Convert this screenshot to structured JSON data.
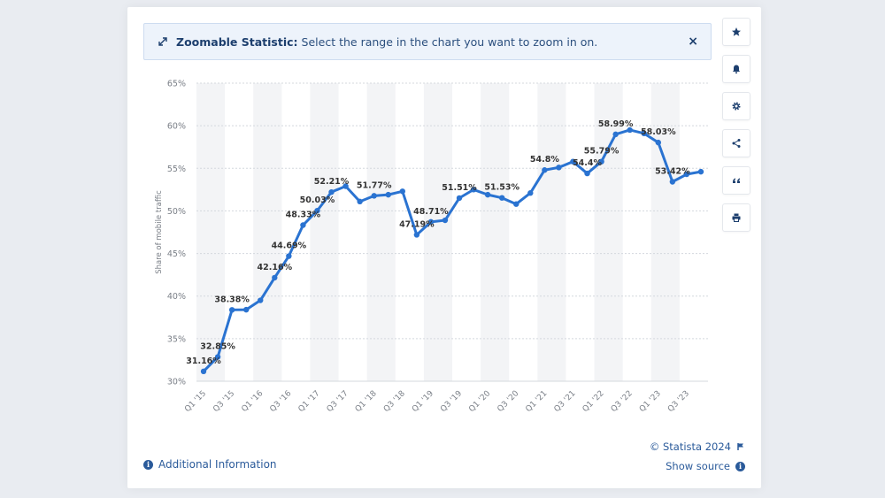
{
  "banner": {
    "title": "Zoomable Statistic:",
    "text": "Select the range in the chart you want to zoom in on.",
    "close": "×"
  },
  "sidebar": [
    {
      "name": "star-icon",
      "glyph": "★"
    },
    {
      "name": "bell-icon",
      "glyph": "🔔"
    },
    {
      "name": "gear-icon",
      "glyph": "⚙"
    },
    {
      "name": "share-icon",
      "glyph": "<"
    },
    {
      "name": "quote-icon",
      "glyph": "❝"
    },
    {
      "name": "print-icon",
      "glyph": "⎙"
    }
  ],
  "footer": {
    "additional_info": "Additional Information",
    "copyright": "© Statista 2024",
    "show_source": "Show source"
  },
  "colors": {
    "line": "#2a73d1",
    "text_dark": "#333333",
    "link": "#2a5a9a"
  },
  "chart_data": {
    "type": "line",
    "ylabel": "Share of mobile traffic",
    "ylim": [
      30,
      65
    ],
    "yticks": [
      "30%",
      "35%",
      "40%",
      "45%",
      "50%",
      "55%",
      "60%",
      "65%"
    ],
    "xticks": [
      "Q1 '15",
      "Q3 '15",
      "Q1 '16",
      "Q3 '16",
      "Q1 '17",
      "Q3 '17",
      "Q1 '18",
      "Q3 '18",
      "Q1 '19",
      "Q3 '19",
      "Q1 '20",
      "Q3 '20",
      "Q1 '21",
      "Q3 '21",
      "Q1 '22",
      "Q3 '22",
      "Q1 '23",
      "Q3 '23"
    ],
    "categories": [
      "Q1 '15",
      "Q2 '15",
      "Q3 '15",
      "Q4 '15",
      "Q1 '16",
      "Q2 '16",
      "Q3 '16",
      "Q4 '16",
      "Q1 '17",
      "Q2 '17",
      "Q3 '17",
      "Q4 '17",
      "Q1 '18",
      "Q2 '18",
      "Q3 '18",
      "Q4 '18",
      "Q1 '19",
      "Q2 '19",
      "Q3 '19",
      "Q4 '19",
      "Q1 '20",
      "Q2 '20",
      "Q3 '20",
      "Q4 '20",
      "Q1 '21",
      "Q2 '21",
      "Q3 '21",
      "Q4 '21",
      "Q1 '22",
      "Q2 '22",
      "Q3 '22",
      "Q4 '22",
      "Q1 '23",
      "Q2 '23",
      "Q3 '23",
      "Q4 '23"
    ],
    "values": [
      31.16,
      32.85,
      38.38,
      38.4,
      39.5,
      42.16,
      44.69,
      48.33,
      50.03,
      52.21,
      52.9,
      51.1,
      51.77,
      51.9,
      52.3,
      47.19,
      48.71,
      48.9,
      51.51,
      52.5,
      51.9,
      51.53,
      50.8,
      52.1,
      54.8,
      55.1,
      55.79,
      54.4,
      55.79,
      58.99,
      59.5,
      59.1,
      58.03,
      53.42,
      54.3,
      54.6
    ],
    "labels": {
      "0": "31.16%",
      "1": "32.85%",
      "2": "38.38%",
      "5": "42.16%",
      "6": "44.69%",
      "7": "48.33%",
      "8": "50.03%",
      "9": "52.21%",
      "12": "51.77%",
      "15": "47.19%",
      "16": "48.71%",
      "18": "51.51%",
      "21": "51.53%",
      "24": "54.8%",
      "27": "54.4%",
      "28": "55.79%",
      "29": "58.99%",
      "32": "58.03%",
      "33": "53.42%"
    },
    "grid": true,
    "legend": "none"
  }
}
